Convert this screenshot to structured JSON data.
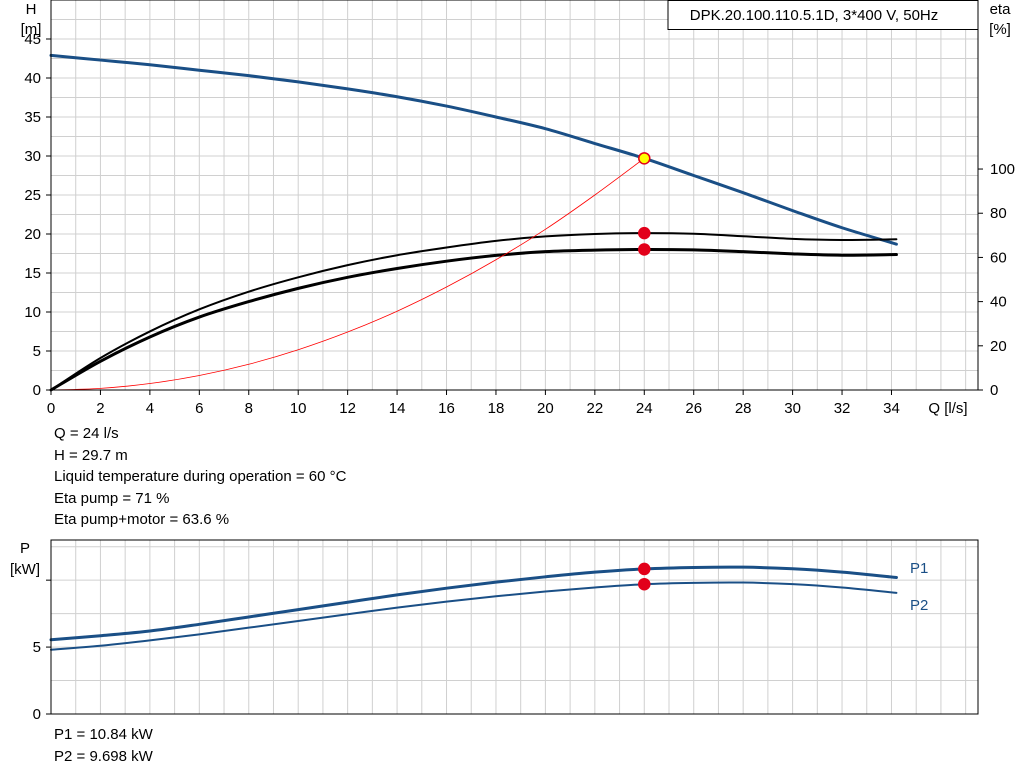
{
  "chart_data": [
    {
      "type": "line",
      "title": "DPK.20.100.110.5.1D, 3*400 V, 50Hz",
      "ylabel_left": [
        "H",
        "[m]"
      ],
      "ylabel_right": [
        "eta",
        "[%]"
      ],
      "xlabel": "Q [l/s]",
      "xlim": [
        0,
        37.5
      ],
      "ylim_left": [
        0,
        50
      ],
      "ylim_right": [
        0,
        176.5
      ],
      "x_ticks": [
        0,
        2,
        4,
        6,
        8,
        10,
        12,
        14,
        16,
        18,
        20,
        22,
        24,
        26,
        28,
        30,
        32,
        34
      ],
      "y_ticks_left": [
        0,
        5,
        10,
        15,
        20,
        25,
        30,
        35,
        40,
        45
      ],
      "y_ticks_right": [
        0,
        20,
        40,
        60,
        80,
        100
      ],
      "grid": true,
      "series": [
        {
          "name": "H",
          "axis": "left",
          "color": "#1a4f86",
          "width": 3,
          "x": [
            0,
            2,
            4,
            6,
            8,
            10,
            12,
            14,
            16,
            18,
            20,
            22,
            24,
            26,
            28,
            30,
            32,
            34.2
          ],
          "y": [
            42.9,
            42.3,
            41.7,
            41.0,
            40.3,
            39.5,
            38.6,
            37.6,
            36.4,
            35.0,
            33.5,
            31.6,
            29.7,
            27.5,
            25.3,
            23.0,
            20.8,
            18.7
          ]
        },
        {
          "name": "Eta pump",
          "axis": "right",
          "color": "#000000",
          "width": 2,
          "x": [
            0,
            2,
            4,
            6,
            8,
            10,
            12,
            14,
            16,
            18,
            20,
            22,
            24,
            26,
            28,
            30,
            32,
            34.2
          ],
          "y": [
            0,
            14.5,
            26.5,
            36.5,
            44.5,
            51.0,
            56.5,
            61.0,
            64.5,
            67.5,
            69.5,
            70.6,
            71.0,
            70.7,
            69.6,
            68.4,
            67.9,
            68.2
          ]
        },
        {
          "name": "Eta pump+motor",
          "axis": "right",
          "color": "#000000",
          "width": 3,
          "x": [
            0,
            2,
            4,
            6,
            8,
            10,
            12,
            14,
            16,
            18,
            20,
            22,
            24,
            26,
            28,
            30,
            32,
            34.2
          ],
          "y": [
            0,
            13.0,
            24.0,
            33.0,
            40.0,
            46.0,
            51.0,
            55.0,
            58.3,
            60.9,
            62.6,
            63.3,
            63.6,
            63.4,
            62.6,
            61.6,
            61.0,
            61.3
          ]
        },
        {
          "name": "System curve",
          "axis": "left",
          "color": "#ff0000",
          "width": 0.8,
          "x": [
            0,
            2,
            4,
            6,
            8,
            10,
            12,
            14,
            16,
            18,
            20,
            22,
            24
          ],
          "y": [
            0,
            0.21,
            0.83,
            1.86,
            3.3,
            5.16,
            7.43,
            10.1,
            13.2,
            16.7,
            20.6,
            25.0,
            29.7
          ]
        }
      ],
      "points": [
        {
          "name": "duty-point-h",
          "axis": "left",
          "x": 24,
          "y": 29.7,
          "fill": "#ffff00",
          "stroke": "#e2001a"
        },
        {
          "name": "duty-point-eta-pump",
          "axis": "right",
          "x": 24,
          "y": 71.0,
          "fill": "#e2001a",
          "stroke": "#e2001a"
        },
        {
          "name": "duty-point-eta-total",
          "axis": "right",
          "x": 24,
          "y": 63.6,
          "fill": "#e2001a",
          "stroke": "#e2001a"
        }
      ]
    },
    {
      "type": "line",
      "ylabel": [
        "P",
        "[kW]"
      ],
      "xlim": [
        0,
        37.5
      ],
      "ylim": [
        0,
        13
      ],
      "y_ticks": [
        0,
        5
      ],
      "grid": true,
      "series": [
        {
          "name": "P1",
          "color": "#1a4f86",
          "width": 3,
          "x": [
            0,
            2,
            4,
            6,
            8,
            10,
            12,
            14,
            16,
            18,
            20,
            22,
            24,
            26,
            28,
            30,
            32,
            34.2
          ],
          "y": [
            5.55,
            5.85,
            6.2,
            6.7,
            7.25,
            7.8,
            8.35,
            8.9,
            9.4,
            9.85,
            10.25,
            10.6,
            10.84,
            10.95,
            10.97,
            10.85,
            10.6,
            10.2
          ]
        },
        {
          "name": "P2",
          "color": "#1a4f86",
          "width": 2,
          "x": [
            0,
            2,
            4,
            6,
            8,
            10,
            12,
            14,
            16,
            18,
            20,
            22,
            24,
            26,
            28,
            30,
            32,
            34.2
          ],
          "y": [
            4.8,
            5.1,
            5.5,
            5.95,
            6.45,
            6.95,
            7.45,
            7.95,
            8.4,
            8.8,
            9.15,
            9.45,
            9.698,
            9.8,
            9.82,
            9.7,
            9.45,
            9.05
          ]
        }
      ],
      "points": [
        {
          "name": "duty-point-p1",
          "x": 24,
          "y": 10.84,
          "fill": "#e2001a",
          "stroke": "#e2001a"
        },
        {
          "name": "duty-point-p2",
          "x": 24,
          "y": 9.698,
          "fill": "#e2001a",
          "stroke": "#e2001a"
        }
      ],
      "labels": {
        "p1": "P1",
        "p2": "P2"
      }
    }
  ],
  "info_top": [
    "Q = 24 l/s",
    "H = 29.7 m",
    "Liquid temperature during operation = 60 °C",
    "Eta pump = 71 %",
    "Eta pump+motor = 63.6 %"
  ],
  "info_bottom": [
    "P1 = 10.84 kW",
    "P2 = 9.698 kW"
  ]
}
